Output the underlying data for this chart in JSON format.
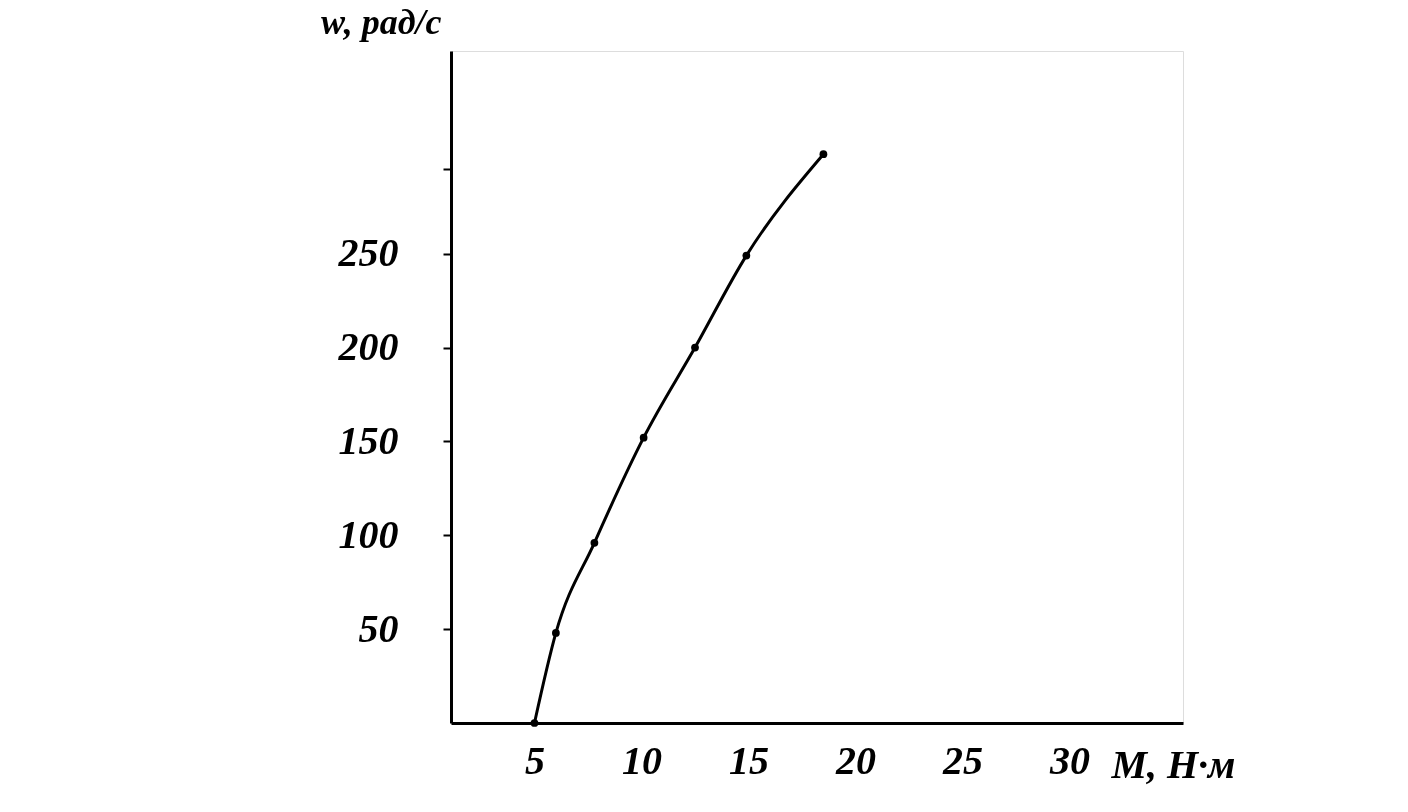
{
  "chart_data": {
    "type": "line",
    "xlabel": "M, Н·м",
    "ylabel": "w, рад/с",
    "x": [
      5.0,
      6.0,
      7.8,
      10.1,
      12.5,
      14.9,
      18.5
    ],
    "series": [
      {
        "color": "#000000",
        "values": [
          0,
          48,
          96,
          152,
          200,
          249,
          303
        ]
      }
    ],
    "marker": "circle",
    "line_style": "solid",
    "grid": false,
    "xlim": [
      1.1,
      35.3
    ],
    "xticks": [
      5,
      10,
      15,
      20,
      25,
      30
    ],
    "ylim": [
      0,
      358
    ],
    "yticks": [
      50,
      100,
      150,
      200,
      250,
      {
        "value": 295,
        "label": null
      }
    ]
  }
}
